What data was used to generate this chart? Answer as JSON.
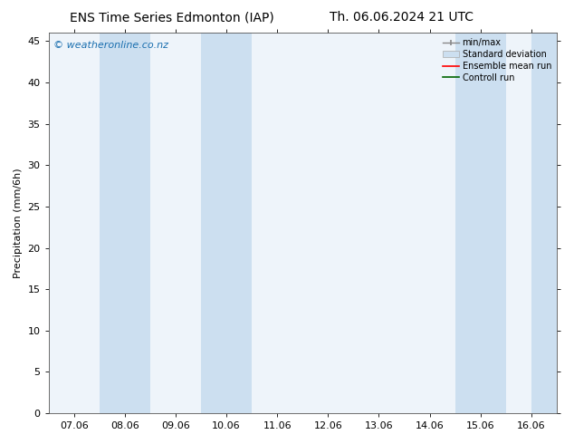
{
  "title_left": "ENS Time Series Edmonton (IAP)",
  "title_right": "Th. 06.06.2024 21 UTC",
  "ylabel": "Precipitation (mm/6h)",
  "watermark": "© weatheronline.co.nz",
  "xtick_labels": [
    "07.06",
    "08.06",
    "09.06",
    "10.06",
    "11.06",
    "12.06",
    "13.06",
    "14.06",
    "15.06",
    "16.06"
  ],
  "xtick_positions": [
    0,
    1,
    2,
    3,
    4,
    5,
    6,
    7,
    8,
    9
  ],
  "ylim": [
    0,
    46
  ],
  "yticks": [
    0,
    5,
    10,
    15,
    20,
    25,
    30,
    35,
    40,
    45
  ],
  "xlim": [
    -0.5,
    9.5
  ],
  "shaded_bands": [
    {
      "x_start": 0.5,
      "x_end": 1.5,
      "color": "#ccdff0"
    },
    {
      "x_start": 2.5,
      "x_end": 3.5,
      "color": "#ccdff0"
    },
    {
      "x_start": 7.5,
      "x_end": 8.5,
      "color": "#ccdff0"
    },
    {
      "x_start": 9.0,
      "x_end": 9.5,
      "color": "#ccdff0"
    }
  ],
  "plot_bg_color": "#eef4fa",
  "legend_items": [
    {
      "label": "min/max",
      "color": "#aaaaaa",
      "type": "errorbar"
    },
    {
      "label": "Standard deviation",
      "color": "#c8dcea",
      "type": "bar"
    },
    {
      "label": "Ensemble mean run",
      "color": "#ff0000",
      "type": "line"
    },
    {
      "label": "Controll run",
      "color": "#006400",
      "type": "line"
    }
  ],
  "background_color": "#ffffff",
  "border_color": "#555555",
  "title_fontsize": 10,
  "axis_label_fontsize": 8,
  "tick_fontsize": 8,
  "watermark_color": "#1a6faf",
  "watermark_fontsize": 8,
  "legend_fontsize": 7
}
